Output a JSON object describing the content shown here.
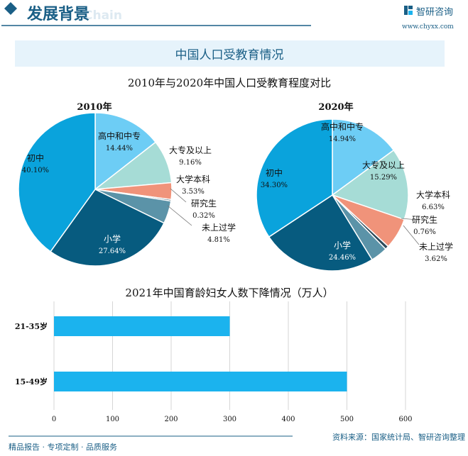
{
  "header": {
    "title": "发展背景",
    "title_ghost": "Chain",
    "brand": "智研咨询",
    "url": "www.chyxx.com"
  },
  "section_title": "中国人口受教育情况",
  "footer": {
    "left": "精品报告 · 专项定制 · 品质服务",
    "source": "资料来源：国家统计局、智研咨询整理"
  },
  "colors": {
    "primary": "#1a5f86",
    "bar": "#1bb3ee",
    "banner_bg": "#e6f3fb"
  },
  "chart_data": [
    {
      "type": "pie",
      "title": "2010年与2020年中国人口受教育程度对比",
      "subtitle": "2010年",
      "slices": [
        {
          "label": "高中和中专",
          "value": 14.44,
          "text": "14.44%",
          "color": "#6dcdf5"
        },
        {
          "label": "大专及以上",
          "value": 9.16,
          "text": "9.16%",
          "color": "#a6dcd6"
        },
        {
          "label": "大学本科",
          "value": 3.53,
          "text": "3.53%",
          "color": "#f0937a"
        },
        {
          "label": "研究生",
          "value": 0.32,
          "text": "0.32%",
          "color": "#2d4a5a"
        },
        {
          "label": "未上过学",
          "value": 4.81,
          "text": "4.81%",
          "color": "#5b93a8"
        },
        {
          "label": "小学",
          "value": 27.64,
          "text": "27.64%",
          "color": "#075b7f"
        },
        {
          "label": "初中",
          "value": 40.1,
          "text": "40.10%",
          "color": "#0aa3dc"
        }
      ]
    },
    {
      "type": "pie",
      "subtitle": "2020年",
      "slices": [
        {
          "label": "高中和中专",
          "value": 14.94,
          "text": "14.94%",
          "color": "#6dcdf5"
        },
        {
          "label": "大专及以上",
          "value": 15.29,
          "text": "15.29%",
          "color": "#a6dcd6"
        },
        {
          "label": "大学本科",
          "value": 6.63,
          "text": "6.63%",
          "color": "#f0937a"
        },
        {
          "label": "研究生",
          "value": 0.76,
          "text": "0.76%",
          "color": "#2d4a5a"
        },
        {
          "label": "未上过学",
          "value": 3.62,
          "text": "3.62%",
          "color": "#5b93a8"
        },
        {
          "label": "小学",
          "value": 24.46,
          "text": "24.46%",
          "color": "#075b7f"
        },
        {
          "label": "初中",
          "value": 34.3,
          "text": "34.30%",
          "color": "#0aa3dc"
        }
      ]
    },
    {
      "type": "bar",
      "orientation": "horizontal",
      "title": "2021年中国育龄妇女人数下降情况（万人）",
      "categories": [
        "21-35岁",
        "15-49岁"
      ],
      "values": [
        300,
        500
      ],
      "xlim": [
        0,
        600
      ],
      "xticks": [
        "0",
        "100",
        "200",
        "300",
        "400",
        "500",
        "600"
      ],
      "grid": true
    }
  ]
}
